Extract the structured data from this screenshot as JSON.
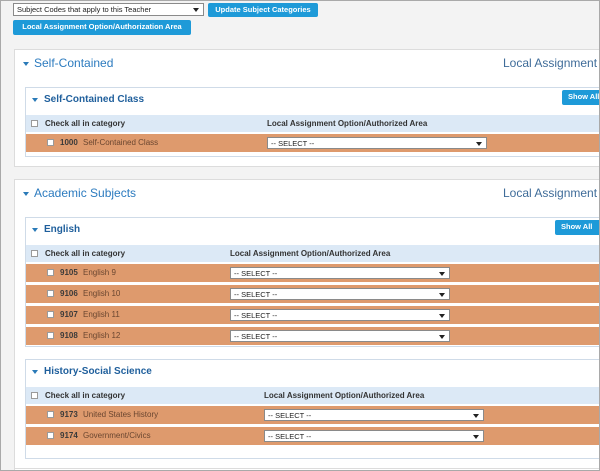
{
  "toolbar": {
    "select": "Subject Codes that apply to this Teacher",
    "update_button": "Update Subject Categories",
    "local_button": "Local Assignment Option/Authorization Area"
  },
  "sections": [
    {
      "title": "Self-Contained",
      "right_header": "Local Assignment",
      "groups": [
        {
          "title": "Self-Contained Class",
          "show_all": "Show All",
          "check_all": "Check all in category",
          "column_header": "Local Assignment Option/Authorized Area",
          "rows": [
            {
              "code": "1000",
              "name": "Self-Contained Class",
              "select": "-- SELECT --"
            }
          ]
        }
      ]
    },
    {
      "title": "Academic Subjects",
      "right_header": "Local Assignment",
      "groups": [
        {
          "title": "English",
          "show_all": "Show All",
          "check_all": "Check all in category",
          "column_header": "Local Assignment Option/Authorized Area",
          "rows": [
            {
              "code": "9105",
              "name": "English 9",
              "select": "-- SELECT --"
            },
            {
              "code": "9106",
              "name": "English 10",
              "select": "-- SELECT --"
            },
            {
              "code": "9107",
              "name": "English 11",
              "select": "-- SELECT --"
            },
            {
              "code": "9108",
              "name": "English 12",
              "select": "-- SELECT --"
            }
          ]
        },
        {
          "title": "History-Social Science",
          "check_all": "Check all in category",
          "column_header": "Local Assignment Option/Authorized Area",
          "rows": [
            {
              "code": "9173",
              "name": "United States History",
              "select": "-- SELECT --"
            },
            {
              "code": "9174",
              "name": "Government/Civics",
              "select": "-- SELECT --"
            }
          ]
        }
      ]
    }
  ]
}
